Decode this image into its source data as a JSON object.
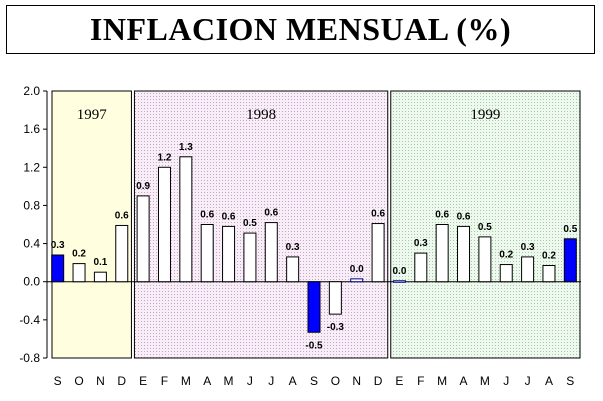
{
  "title": "INFLACION MENSUAL (%)",
  "colors": {
    "bar_default": "#ffffff",
    "bar_highlight": "#0000ff",
    "bar_stroke": "#000000",
    "bar_zero_line": "#000080",
    "region_1997": "#ffffe0",
    "region_1998": "#f3e6f3",
    "region_1999": "#e8f6e8"
  },
  "chart_data": {
    "type": "bar",
    "title": "INFLACION MENSUAL (%)",
    "xlabel": "",
    "ylabel": "",
    "ylim": [
      -0.8,
      2.0
    ],
    "yticks": [
      "-0.8",
      "-0.4",
      "0.0",
      "0.4",
      "0.8",
      "1.2",
      "1.6",
      "2.0"
    ],
    "ytick_values": [
      -0.8,
      -0.4,
      0.0,
      0.4,
      0.8,
      1.2,
      1.6,
      2.0
    ],
    "grid": false,
    "categories": [
      "S",
      "O",
      "N",
      "D",
      "E",
      "F",
      "M",
      "A",
      "M",
      "J",
      "J",
      "A",
      "S",
      "O",
      "N",
      "D",
      "E",
      "F",
      "M",
      "A",
      "M",
      "J",
      "J",
      "A",
      "S"
    ],
    "values": [
      0.28,
      0.19,
      0.1,
      0.59,
      0.9,
      1.2,
      1.31,
      0.6,
      0.58,
      0.51,
      0.62,
      0.26,
      -0.53,
      -0.34,
      0.03,
      0.61,
      0.01,
      0.3,
      0.6,
      0.58,
      0.47,
      0.18,
      0.26,
      0.17,
      0.45
    ],
    "labels": [
      "0.3",
      "0.2",
      "0.1",
      "0.6",
      "0.9",
      "1.2",
      "1.3",
      "0.6",
      "0.6",
      "0.5",
      "0.6",
      "0.3",
      "-0.5",
      "-0.3",
      "0.0",
      "0.6",
      "0.0",
      "0.3",
      "0.6",
      "0.6",
      "0.5",
      "0.2",
      "0.3",
      "0.2",
      "0.5"
    ],
    "highlighted": [
      0,
      12,
      24
    ],
    "year_groups": [
      {
        "label": "1997",
        "start": 0,
        "end": 3
      },
      {
        "label": "1998",
        "start": 4,
        "end": 15
      },
      {
        "label": "1999",
        "start": 16,
        "end": 24
      }
    ]
  }
}
